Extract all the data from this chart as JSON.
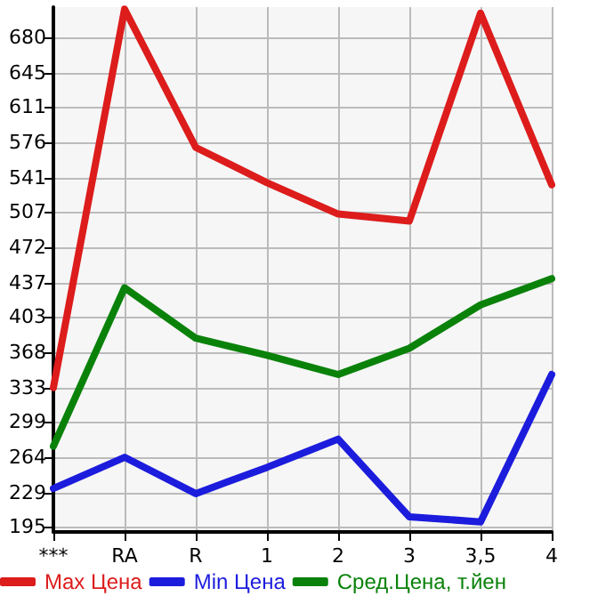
{
  "chart_data": {
    "type": "line",
    "categories": [
      "***",
      "RA",
      "R",
      "1",
      "2",
      "3",
      "3,5",
      "4"
    ],
    "series": [
      {
        "name": "Max Цена",
        "color": "#dd1c1c",
        "values": [
          333,
          708,
          571,
          536,
          505,
          498,
          704,
          534
        ]
      },
      {
        "name": "Min Цена",
        "color": "#1c1cdd",
        "values": [
          233,
          264,
          228,
          254,
          282,
          205,
          200,
          346
        ]
      },
      {
        "name": "Сред.Цена, т.йен",
        "color": "#0a820a",
        "values": [
          275,
          432,
          382,
          365,
          346,
          372,
          415,
          441
        ]
      }
    ],
    "ylim": [
      190,
      710
    ],
    "yticks": [
      195,
      229,
      264,
      299,
      333,
      368,
      403,
      437,
      472,
      507,
      541,
      576,
      611,
      645,
      680
    ],
    "grid": true,
    "legend": "bottom",
    "marker": "none",
    "line_style": "solid"
  }
}
